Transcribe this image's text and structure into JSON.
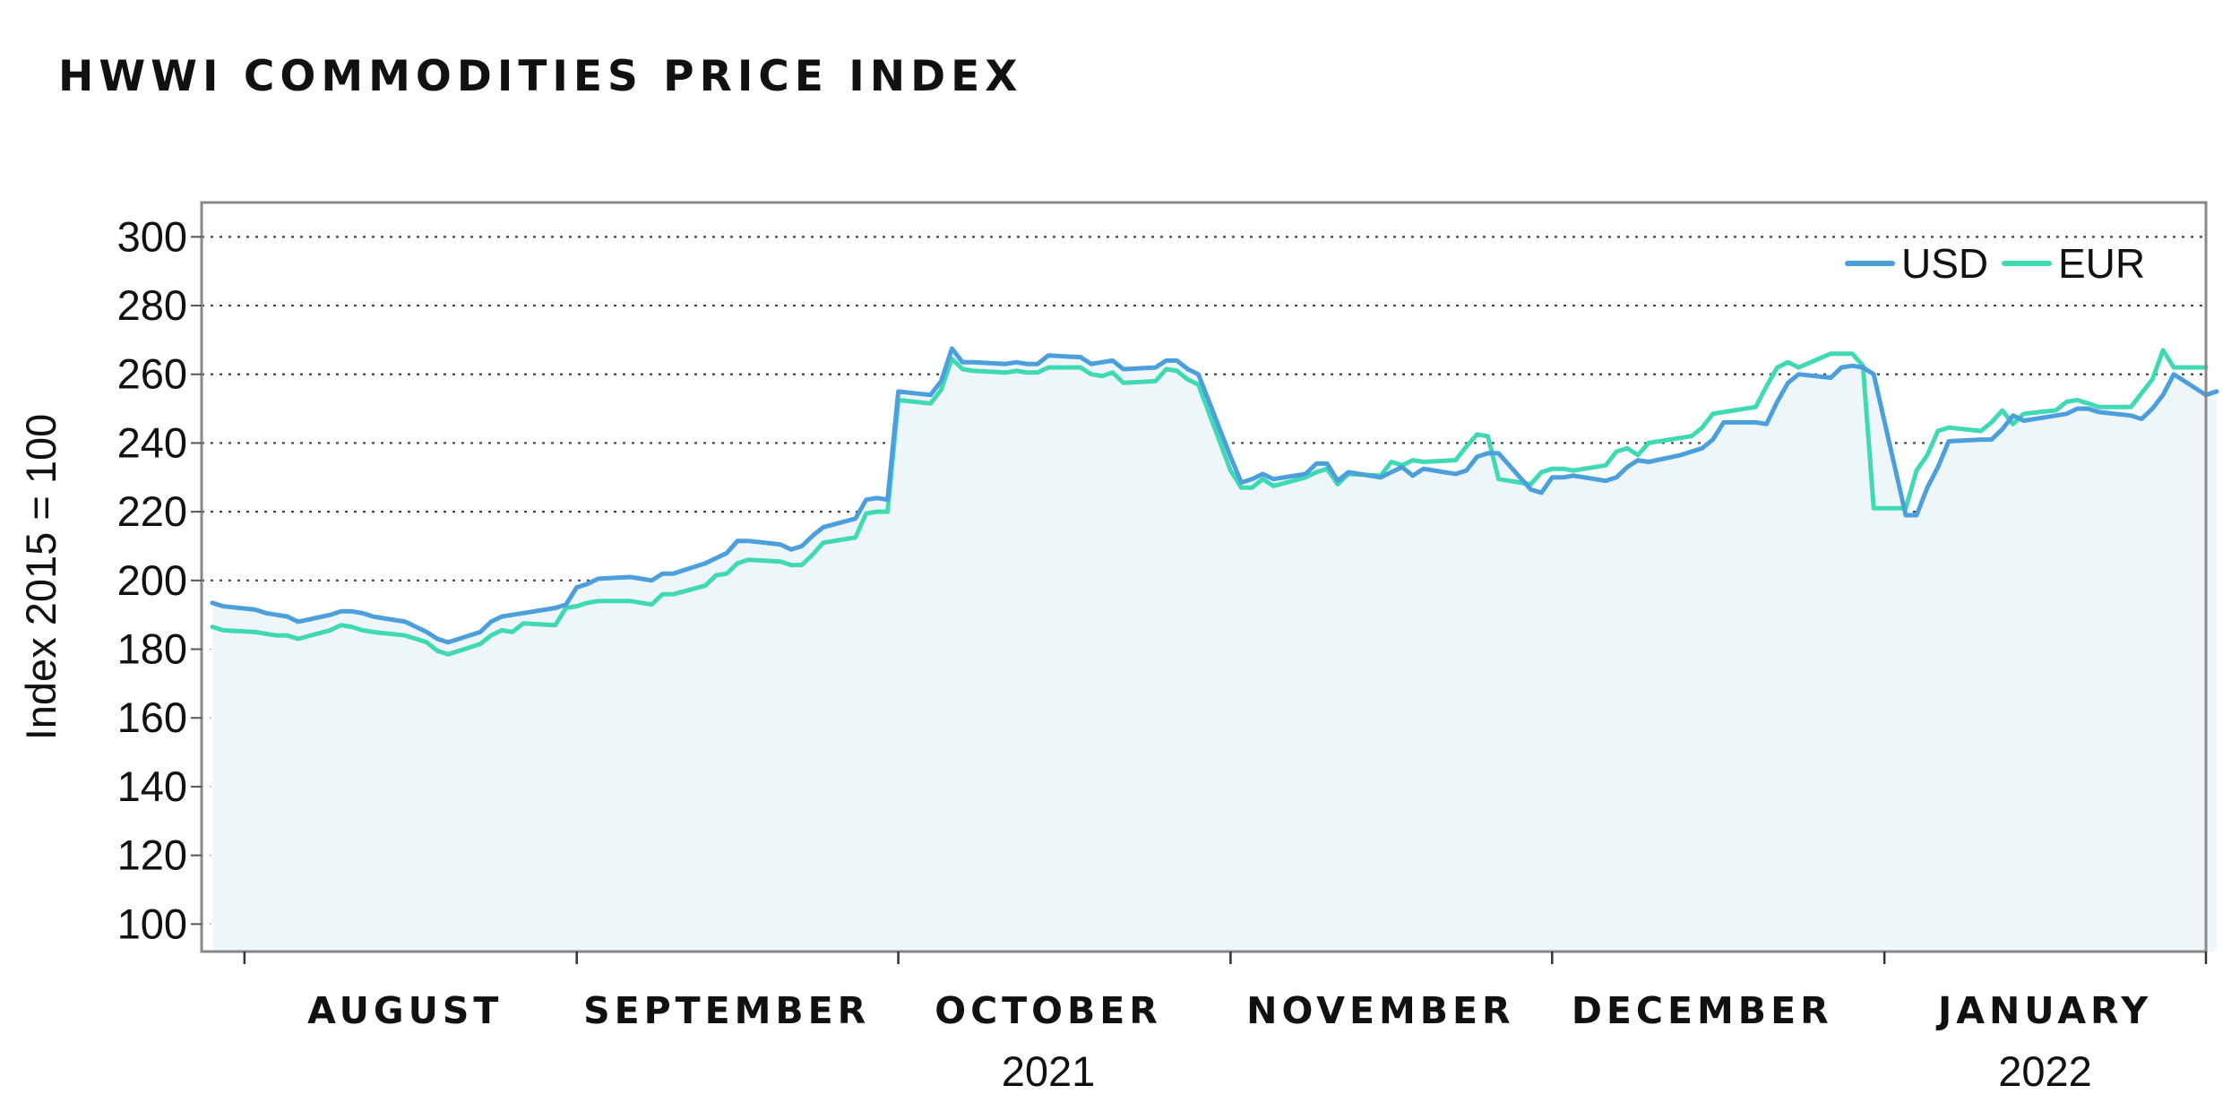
{
  "chart_data": {
    "type": "line",
    "title": "HWWI COMMODITIES PRICE INDEX",
    "xlabel": "",
    "ylabel": "Index 2015 = 100",
    "ylim": [
      92,
      310
    ],
    "yticks": [
      100,
      120,
      140,
      160,
      180,
      200,
      220,
      240,
      260,
      280,
      300
    ],
    "grid": true,
    "legend_position": "top-right",
    "x_range": [
      "2021-07-28",
      "2022-01-31"
    ],
    "month_labels": [
      {
        "label": "AUGUST",
        "date": "2021-08-16"
      },
      {
        "label": "SEPTEMBER",
        "date": "2021-09-15"
      },
      {
        "label": "OCTOBER",
        "date": "2021-10-15"
      },
      {
        "label": "NOVEMBER",
        "date": "2021-11-15"
      },
      {
        "label": "DECEMBER",
        "date": "2021-12-15"
      },
      {
        "label": "JANUARY",
        "date": "2022-01-16"
      }
    ],
    "year_labels": [
      {
        "label": "2021",
        "date": "2021-10-15"
      },
      {
        "label": "2022",
        "date": "2022-01-16"
      }
    ],
    "x_ticks": [
      "2021-08-01",
      "2021-09-01",
      "2021-10-01",
      "2021-11-01",
      "2021-12-01",
      "2022-01-01",
      "2022-01-31"
    ],
    "series": [
      {
        "name": "USD",
        "color": "#4a9fdc",
        "points": [
          [
            "2021-07-29",
            193.5
          ],
          [
            "2021-07-30",
            192.5
          ],
          [
            "2021-08-02",
            191.5
          ],
          [
            "2021-08-03",
            190.5
          ],
          [
            "2021-08-04",
            190.0
          ],
          [
            "2021-08-05",
            189.5
          ],
          [
            "2021-08-06",
            188.0
          ],
          [
            "2021-08-09",
            190.0
          ],
          [
            "2021-08-10",
            191.0
          ],
          [
            "2021-08-11",
            191.0
          ],
          [
            "2021-08-12",
            190.5
          ],
          [
            "2021-08-13",
            189.5
          ],
          [
            "2021-08-16",
            188.0
          ],
          [
            "2021-08-17",
            186.5
          ],
          [
            "2021-08-18",
            185.0
          ],
          [
            "2021-08-19",
            183.0
          ],
          [
            "2021-08-20",
            182.0
          ],
          [
            "2021-08-23",
            185.0
          ],
          [
            "2021-08-24",
            188.0
          ],
          [
            "2021-08-25",
            189.5
          ],
          [
            "2021-08-26",
            190.0
          ],
          [
            "2021-08-27",
            190.5
          ],
          [
            "2021-08-30",
            192.0
          ],
          [
            "2021-08-31",
            193.0
          ],
          [
            "2021-09-01",
            198.0
          ],
          [
            "2021-09-02",
            199.0
          ],
          [
            "2021-09-03",
            200.5
          ],
          [
            "2021-09-06",
            201.0
          ],
          [
            "2021-09-07",
            200.5
          ],
          [
            "2021-09-08",
            200.0
          ],
          [
            "2021-09-09",
            202.0
          ],
          [
            "2021-09-10",
            202.0
          ],
          [
            "2021-09-13",
            205.0
          ],
          [
            "2021-09-14",
            206.5
          ],
          [
            "2021-09-15",
            208.0
          ],
          [
            "2021-09-16",
            211.5
          ],
          [
            "2021-09-17",
            211.5
          ],
          [
            "2021-09-20",
            210.5
          ],
          [
            "2021-09-21",
            209.0
          ],
          [
            "2021-09-22",
            210.0
          ],
          [
            "2021-09-23",
            213.0
          ],
          [
            "2021-09-24",
            215.5
          ],
          [
            "2021-09-27",
            218.0
          ],
          [
            "2021-09-28",
            223.5
          ],
          [
            "2021-09-29",
            224.0
          ],
          [
            "2021-09-30",
            223.5
          ],
          [
            "2021-10-01",
            255.0
          ],
          [
            "2021-10-04",
            254.0
          ],
          [
            "2021-10-05",
            258.0
          ],
          [
            "2021-10-06",
            267.5
          ],
          [
            "2021-10-07",
            263.5
          ],
          [
            "2021-10-08",
            263.5
          ],
          [
            "2021-10-11",
            263.0
          ],
          [
            "2021-10-12",
            263.5
          ],
          [
            "2021-10-13",
            263.0
          ],
          [
            "2021-10-14",
            263.0
          ],
          [
            "2021-10-15",
            265.5
          ],
          [
            "2021-10-18",
            265.0
          ],
          [
            "2021-10-19",
            263.0
          ],
          [
            "2021-10-20",
            263.5
          ],
          [
            "2021-10-21",
            264.0
          ],
          [
            "2021-10-22",
            261.5
          ],
          [
            "2021-10-25",
            262.0
          ],
          [
            "2021-10-26",
            264.0
          ],
          [
            "2021-10-27",
            264.0
          ],
          [
            "2021-10-28",
            261.5
          ],
          [
            "2021-10-29",
            260.0
          ],
          [
            "2021-11-01",
            236.0
          ],
          [
            "2021-11-02",
            228.5
          ],
          [
            "2021-11-03",
            229.5
          ],
          [
            "2021-11-04",
            231.0
          ],
          [
            "2021-11-05",
            229.5
          ],
          [
            "2021-11-08",
            231.0
          ],
          [
            "2021-11-09",
            234.0
          ],
          [
            "2021-11-10",
            234.0
          ],
          [
            "2021-11-11",
            229.0
          ],
          [
            "2021-11-12",
            231.5
          ],
          [
            "2021-11-15",
            230.0
          ],
          [
            "2021-11-16",
            231.5
          ],
          [
            "2021-11-17",
            233.0
          ],
          [
            "2021-11-18",
            230.5
          ],
          [
            "2021-11-19",
            232.5
          ],
          [
            "2021-11-22",
            231.0
          ],
          [
            "2021-11-23",
            232.0
          ],
          [
            "2021-11-24",
            236.0
          ],
          [
            "2021-11-25",
            237.0
          ],
          [
            "2021-11-26",
            237.0
          ],
          [
            "2021-11-29",
            226.5
          ],
          [
            "2021-11-30",
            225.5
          ],
          [
            "2021-12-01",
            230.0
          ],
          [
            "2021-12-02",
            230.0
          ],
          [
            "2021-12-03",
            230.5
          ],
          [
            "2021-12-06",
            229.0
          ],
          [
            "2021-12-07",
            230.0
          ],
          [
            "2021-12-08",
            233.0
          ],
          [
            "2021-12-09",
            235.0
          ],
          [
            "2021-12-10",
            234.5
          ],
          [
            "2021-12-13",
            236.5
          ],
          [
            "2021-12-14",
            237.5
          ],
          [
            "2021-12-15",
            238.5
          ],
          [
            "2021-12-16",
            241.0
          ],
          [
            "2021-12-17",
            246.0
          ],
          [
            "2021-12-20",
            246.0
          ],
          [
            "2021-12-21",
            245.5
          ],
          [
            "2021-12-22",
            252.0
          ],
          [
            "2021-12-23",
            257.5
          ],
          [
            "2021-12-24",
            260.0
          ],
          [
            "2021-12-27",
            259.0
          ],
          [
            "2021-12-28",
            262.0
          ],
          [
            "2021-12-29",
            262.5
          ],
          [
            "2021-12-30",
            262.0
          ],
          [
            "2021-12-31",
            260.0
          ],
          [
            "2022-01-03",
            219.0
          ],
          [
            "2022-01-04",
            219.0
          ],
          [
            "2022-01-05",
            227.0
          ],
          [
            "2022-01-06",
            233.0
          ],
          [
            "2022-01-07",
            240.5
          ],
          [
            "2022-01-10",
            241.0
          ],
          [
            "2022-01-11",
            241.0
          ],
          [
            "2022-01-12",
            244.0
          ],
          [
            "2022-01-13",
            248.0
          ],
          [
            "2022-01-14",
            246.5
          ],
          [
            "2022-01-17",
            248.0
          ],
          [
            "2022-01-18",
            248.5
          ],
          [
            "2022-01-19",
            250.0
          ],
          [
            "2022-01-20",
            250.0
          ],
          [
            "2022-01-21",
            249.0
          ],
          [
            "2022-01-24",
            248.0
          ],
          [
            "2022-01-25",
            247.0
          ],
          [
            "2022-01-26",
            250.0
          ],
          [
            "2022-01-27",
            254.0
          ],
          [
            "2022-01-28",
            260.0
          ],
          [
            "2022-01-31",
            254.0
          ],
          [
            "2022-02-01",
            255.0
          ]
        ]
      },
      {
        "name": "EUR",
        "color": "#3fd9b4",
        "points": [
          [
            "2021-07-29",
            186.5
          ],
          [
            "2021-07-30",
            185.5
          ],
          [
            "2021-08-02",
            185.0
          ],
          [
            "2021-08-03",
            184.5
          ],
          [
            "2021-08-04",
            184.0
          ],
          [
            "2021-08-05",
            184.0
          ],
          [
            "2021-08-06",
            183.0
          ],
          [
            "2021-08-09",
            185.5
          ],
          [
            "2021-08-10",
            187.0
          ],
          [
            "2021-08-11",
            186.5
          ],
          [
            "2021-08-12",
            185.5
          ],
          [
            "2021-08-13",
            185.0
          ],
          [
            "2021-08-16",
            184.0
          ],
          [
            "2021-08-17",
            183.0
          ],
          [
            "2021-08-18",
            182.0
          ],
          [
            "2021-08-19",
            179.5
          ],
          [
            "2021-08-20",
            178.5
          ],
          [
            "2021-08-23",
            181.5
          ],
          [
            "2021-08-24",
            184.0
          ],
          [
            "2021-08-25",
            185.5
          ],
          [
            "2021-08-26",
            185.0
          ],
          [
            "2021-08-27",
            187.5
          ],
          [
            "2021-08-30",
            187.0
          ],
          [
            "2021-08-31",
            192.0
          ],
          [
            "2021-09-01",
            192.5
          ],
          [
            "2021-09-02",
            193.5
          ],
          [
            "2021-09-03",
            194.0
          ],
          [
            "2021-09-06",
            194.0
          ],
          [
            "2021-09-07",
            193.5
          ],
          [
            "2021-09-08",
            193.0
          ],
          [
            "2021-09-09",
            196.0
          ],
          [
            "2021-09-10",
            196.0
          ],
          [
            "2021-09-13",
            198.5
          ],
          [
            "2021-09-14",
            201.5
          ],
          [
            "2021-09-15",
            202.0
          ],
          [
            "2021-09-16",
            205.0
          ],
          [
            "2021-09-17",
            206.0
          ],
          [
            "2021-09-20",
            205.5
          ],
          [
            "2021-09-21",
            204.5
          ],
          [
            "2021-09-22",
            204.5
          ],
          [
            "2021-09-23",
            207.5
          ],
          [
            "2021-09-24",
            211.0
          ],
          [
            "2021-09-27",
            212.5
          ],
          [
            "2021-09-28",
            219.5
          ],
          [
            "2021-09-29",
            220.0
          ],
          [
            "2021-09-30",
            220.0
          ],
          [
            "2021-10-01",
            252.5
          ],
          [
            "2021-10-04",
            251.5
          ],
          [
            "2021-10-05",
            255.5
          ],
          [
            "2021-10-06",
            264.5
          ],
          [
            "2021-10-07",
            261.5
          ],
          [
            "2021-10-08",
            261.0
          ],
          [
            "2021-10-11",
            260.5
          ],
          [
            "2021-10-12",
            261.0
          ],
          [
            "2021-10-13",
            260.5
          ],
          [
            "2021-10-14",
            260.5
          ],
          [
            "2021-10-15",
            262.0
          ],
          [
            "2021-10-18",
            262.0
          ],
          [
            "2021-10-19",
            260.0
          ],
          [
            "2021-10-20",
            259.5
          ],
          [
            "2021-10-21",
            260.5
          ],
          [
            "2021-10-22",
            257.5
          ],
          [
            "2021-10-25",
            258.0
          ],
          [
            "2021-10-26",
            261.5
          ],
          [
            "2021-10-27",
            261.0
          ],
          [
            "2021-10-28",
            258.5
          ],
          [
            "2021-10-29",
            257.0
          ],
          [
            "2021-11-01",
            232.0
          ],
          [
            "2021-11-02",
            227.0
          ],
          [
            "2021-11-03",
            227.0
          ],
          [
            "2021-11-04",
            229.5
          ],
          [
            "2021-11-05",
            227.5
          ],
          [
            "2021-11-08",
            230.0
          ],
          [
            "2021-11-09",
            231.5
          ],
          [
            "2021-11-10",
            232.5
          ],
          [
            "2021-11-11",
            228.0
          ],
          [
            "2021-11-12",
            231.0
          ],
          [
            "2021-11-15",
            230.5
          ],
          [
            "2021-11-16",
            234.5
          ],
          [
            "2021-11-17",
            233.5
          ],
          [
            "2021-11-18",
            235.0
          ],
          [
            "2021-11-19",
            234.5
          ],
          [
            "2021-11-22",
            235.0
          ],
          [
            "2021-11-23",
            239.0
          ],
          [
            "2021-11-24",
            242.5
          ],
          [
            "2021-11-25",
            242.0
          ],
          [
            "2021-11-26",
            229.5
          ],
          [
            "2021-11-29",
            228.0
          ],
          [
            "2021-11-30",
            231.5
          ],
          [
            "2021-12-01",
            232.5
          ],
          [
            "2021-12-02",
            232.5
          ],
          [
            "2021-12-03",
            232.0
          ],
          [
            "2021-12-06",
            233.5
          ],
          [
            "2021-12-07",
            237.5
          ],
          [
            "2021-12-08",
            238.5
          ],
          [
            "2021-12-09",
            236.5
          ],
          [
            "2021-12-10",
            240.0
          ],
          [
            "2021-12-13",
            241.5
          ],
          [
            "2021-12-14",
            242.0
          ],
          [
            "2021-12-15",
            244.5
          ],
          [
            "2021-12-16",
            248.5
          ],
          [
            "2021-12-17",
            249.0
          ],
          [
            "2021-12-20",
            250.5
          ],
          [
            "2021-12-21",
            256.5
          ],
          [
            "2021-12-22",
            262.0
          ],
          [
            "2021-12-23",
            263.5
          ],
          [
            "2021-12-24",
            262.0
          ],
          [
            "2021-12-27",
            266.0
          ],
          [
            "2021-12-28",
            266.0
          ],
          [
            "2021-12-29",
            266.0
          ],
          [
            "2021-12-30",
            262.5
          ],
          [
            "2021-12-31",
            221.0
          ],
          [
            "2022-01-03",
            221.0
          ],
          [
            "2022-01-04",
            232.0
          ],
          [
            "2022-01-05",
            236.5
          ],
          [
            "2022-01-06",
            243.5
          ],
          [
            "2022-01-07",
            244.5
          ],
          [
            "2022-01-10",
            243.5
          ],
          [
            "2022-01-11",
            246.0
          ],
          [
            "2022-01-12",
            249.5
          ],
          [
            "2022-01-13",
            245.5
          ],
          [
            "2022-01-14",
            248.5
          ],
          [
            "2022-01-17",
            249.5
          ],
          [
            "2022-01-18",
            252.0
          ],
          [
            "2022-01-19",
            252.5
          ],
          [
            "2022-01-20",
            251.5
          ],
          [
            "2022-01-21",
            250.5
          ],
          [
            "2022-01-24",
            250.5
          ],
          [
            "2022-01-25",
            254.5
          ],
          [
            "2022-01-26",
            258.5
          ],
          [
            "2022-01-27",
            267.0
          ],
          [
            "2022-01-28",
            262.0
          ],
          [
            "2022-01-31",
            262.0
          ]
        ]
      }
    ]
  }
}
